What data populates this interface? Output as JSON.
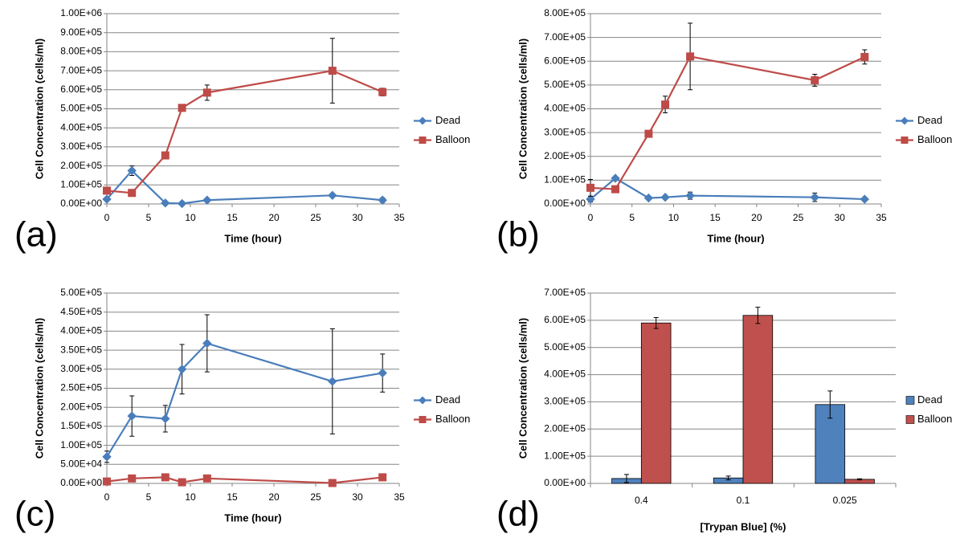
{
  "chart_data": [
    {
      "type": "line",
      "panel_label": "(a)",
      "x_label": "Time (hour)",
      "y_label": "Cell Concentration (cells/ml)",
      "x": [
        0,
        3,
        7,
        9,
        12,
        27,
        33
      ],
      "series": [
        {
          "name": "Dead",
          "color": "#4a7ebb",
          "marker": "diamond",
          "values": [
            25000,
            175000,
            5000,
            2000,
            20000,
            45000,
            20000
          ],
          "errors": [
            8000,
            25000,
            3000,
            2000,
            5000,
            6000,
            12000
          ]
        },
        {
          "name": "Balloon",
          "color": "#be4b48",
          "marker": "square",
          "values": [
            70000,
            58000,
            255000,
            505000,
            585000,
            700000,
            588000
          ],
          "errors": [
            6000,
            5000,
            10000,
            12000,
            40000,
            170000,
            20000
          ]
        }
      ],
      "xlim": [
        0,
        35
      ],
      "xticks": [
        0,
        5,
        10,
        15,
        20,
        25,
        30,
        35
      ],
      "ylim": [
        0,
        1000000
      ],
      "yticks": [
        {
          "value": 0,
          "label": "0.00E+00"
        },
        {
          "value": 100000,
          "label": "1.00E+05"
        },
        {
          "value": 200000,
          "label": "2.00E+05"
        },
        {
          "value": 300000,
          "label": "3.00E+05"
        },
        {
          "value": 400000,
          "label": "4.00E+05"
        },
        {
          "value": 500000,
          "label": "5.00E+05"
        },
        {
          "value": 600000,
          "label": "6.00E+05"
        },
        {
          "value": 700000,
          "label": "7.00E+05"
        },
        {
          "value": 800000,
          "label": "8.00E+05"
        },
        {
          "value": 900000,
          "label": "9.00E+05"
        },
        {
          "value": 1000000,
          "label": "1.00E+06"
        }
      ],
      "grid": true
    },
    {
      "type": "line",
      "panel_label": "(b)",
      "x_label": "Time (hour)",
      "y_label": "Cell Concentration (cells/ml)",
      "x": [
        0,
        3,
        7,
        9,
        12,
        27,
        33
      ],
      "series": [
        {
          "name": "Dead",
          "color": "#4a7ebb",
          "marker": "diamond",
          "values": [
            20000,
            108000,
            25000,
            28000,
            35000,
            28000,
            20000
          ],
          "errors": [
            12000,
            6000,
            5000,
            5000,
            15000,
            18000,
            4000
          ]
        },
        {
          "name": "Balloon",
          "color": "#be4b48",
          "marker": "square",
          "values": [
            68000,
            62000,
            295000,
            418000,
            620000,
            520000,
            618000
          ],
          "errors": [
            35000,
            5000,
            8000,
            35000,
            140000,
            25000,
            30000
          ]
        }
      ],
      "xlim": [
        0,
        35
      ],
      "xticks": [
        0,
        5,
        10,
        15,
        20,
        25,
        30,
        35
      ],
      "ylim": [
        0,
        800000
      ],
      "yticks": [
        {
          "value": 0,
          "label": "0.00E+00"
        },
        {
          "value": 100000,
          "label": "1.00E+05"
        },
        {
          "value": 200000,
          "label": "2.00E+05"
        },
        {
          "value": 300000,
          "label": "3.00E+05"
        },
        {
          "value": 400000,
          "label": "4.00E+05"
        },
        {
          "value": 500000,
          "label": "5.00E+05"
        },
        {
          "value": 600000,
          "label": "6.00E+05"
        },
        {
          "value": 700000,
          "label": "7.00E+05"
        },
        {
          "value": 800000,
          "label": "8.00E+05"
        }
      ],
      "grid": true
    },
    {
      "type": "line",
      "panel_label": "(c)",
      "x_label": "Time (hour)",
      "y_label": "Cell Concentration (cells/ml)",
      "x": [
        0,
        3,
        7,
        9,
        12,
        27,
        33
      ],
      "series": [
        {
          "name": "Dead",
          "color": "#4a7ebb",
          "marker": "diamond",
          "values": [
            70000,
            177000,
            170000,
            300000,
            368000,
            268000,
            290000
          ],
          "errors": [
            15000,
            53000,
            35000,
            65000,
            75000,
            138000,
            50000
          ]
        },
        {
          "name": "Balloon",
          "color": "#be4b48",
          "marker": "square",
          "values": [
            5000,
            13000,
            16000,
            3000,
            13000,
            1000,
            16000
          ],
          "errors": [
            2000,
            2000,
            2000,
            1000,
            8000,
            1000,
            2000
          ]
        }
      ],
      "xlim": [
        0,
        35
      ],
      "xticks": [
        0,
        5,
        10,
        15,
        20,
        25,
        30,
        35
      ],
      "ylim": [
        0,
        500000
      ],
      "yticks": [
        {
          "value": 0,
          "label": "0.00E+00"
        },
        {
          "value": 50000,
          "label": "5.00E+04"
        },
        {
          "value": 100000,
          "label": "1.00E+05"
        },
        {
          "value": 150000,
          "label": "1.50E+05"
        },
        {
          "value": 200000,
          "label": "2.00E+05"
        },
        {
          "value": 250000,
          "label": "2.50E+05"
        },
        {
          "value": 300000,
          "label": "3.00E+05"
        },
        {
          "value": 350000,
          "label": "3.50E+05"
        },
        {
          "value": 400000,
          "label": "4.00E+05"
        },
        {
          "value": 450000,
          "label": "4.50E+05"
        },
        {
          "value": 500000,
          "label": "5.00E+05"
        }
      ],
      "grid": true
    },
    {
      "type": "bar",
      "panel_label": "(d)",
      "x_label": "[Trypan Blue] (%)",
      "y_label": "Cell Concentration (cells/ml)",
      "categories": [
        "0.4",
        "0.1",
        "0.025"
      ],
      "series": [
        {
          "name": "Dead",
          "color": "#4f81bd",
          "values": [
            18000,
            20000,
            290000
          ],
          "errors": [
            15000,
            7000,
            50000
          ]
        },
        {
          "name": "Balloon",
          "color": "#c0504d",
          "values": [
            590000,
            618000,
            15000
          ],
          "errors": [
            20000,
            30000,
            2000
          ]
        }
      ],
      "ylim": [
        0,
        700000
      ],
      "yticks": [
        {
          "value": 0,
          "label": "0.00E+00"
        },
        {
          "value": 100000,
          "label": "1.00E+05"
        },
        {
          "value": 200000,
          "label": "2.00E+05"
        },
        {
          "value": 300000,
          "label": "3.00E+05"
        },
        {
          "value": 400000,
          "label": "4.00E+05"
        },
        {
          "value": 500000,
          "label": "5.00E+05"
        },
        {
          "value": 600000,
          "label": "6.00E+05"
        },
        {
          "value": 700000,
          "label": "7.00E+05"
        }
      ],
      "grid": true
    }
  ]
}
